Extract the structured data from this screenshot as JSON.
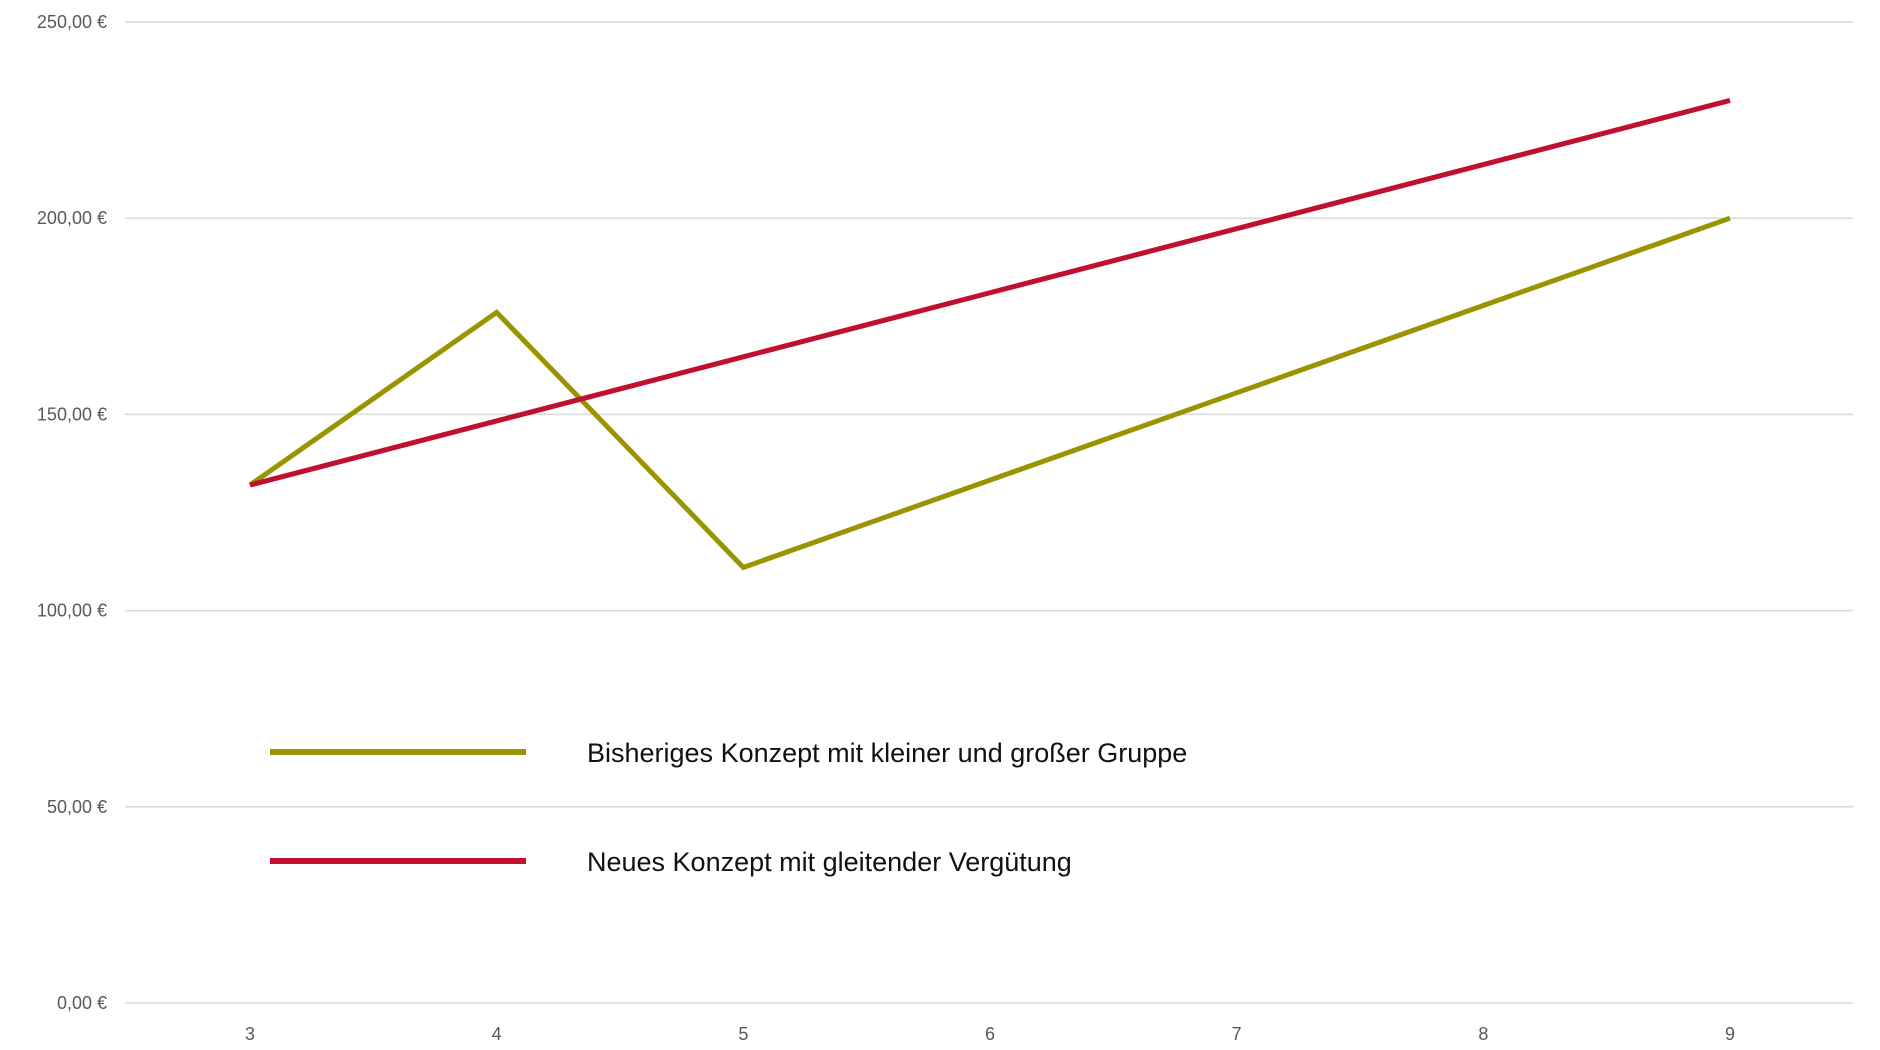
{
  "chart_data": {
    "type": "line",
    "title": "",
    "xlabel": "",
    "ylabel": "",
    "categories": [
      "3",
      "4",
      "5",
      "6",
      "7",
      "8",
      "9"
    ],
    "x": [
      3,
      4,
      5,
      6,
      7,
      8,
      9
    ],
    "y_tick_labels": [
      "0,00 €",
      "50,00 €",
      "100,00 €",
      "150,00 €",
      "200,00 €",
      "250,00 €"
    ],
    "y_ticks": [
      0,
      50,
      100,
      150,
      200,
      250
    ],
    "ylim": [
      0,
      250
    ],
    "grid": true,
    "legend_position": "inside-lower-left",
    "series": [
      {
        "name": "Bisheriges Konzept mit kleiner und großer Gruppe",
        "color": "#999400",
        "values": [
          132,
          176,
          111,
          133.25,
          155.5,
          177.75,
          200
        ]
      },
      {
        "name": "Neues Konzept mit gleitender Vergütung",
        "color": "#C00F2F",
        "values": [
          132,
          148.33,
          164.67,
          181,
          197.33,
          213.67,
          230
        ]
      }
    ]
  }
}
